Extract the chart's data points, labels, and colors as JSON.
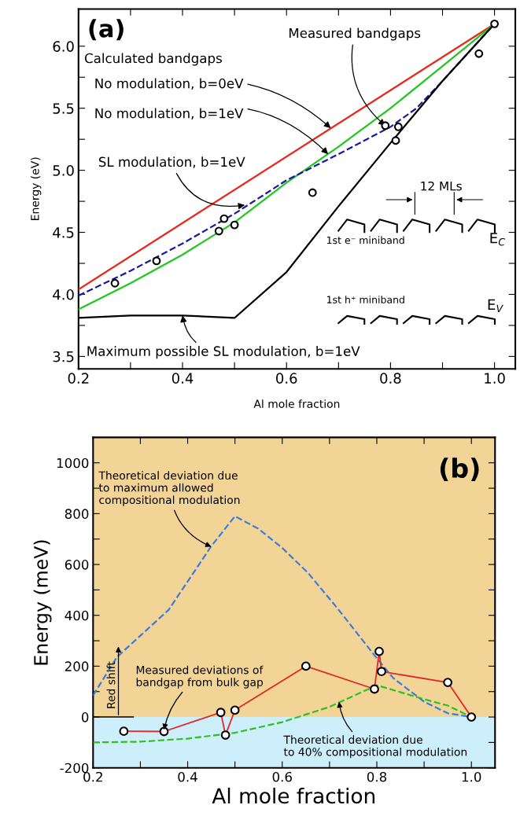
{
  "chart_data": [
    {
      "type": "line",
      "xlabel": "Al mole fraction",
      "ylabel": "Energy (eV)",
      "xlim": [
        0.2,
        1.04
      ],
      "ylim": [
        3.4,
        6.3
      ],
      "xticks": [
        0.2,
        {
          "value": 0.3,
          "label": null
        },
        0.4,
        {
          "value": 0.5,
          "label": null
        },
        0.6,
        {
          "value": 0.7,
          "label": null
        },
        0.8,
        {
          "value": 0.9,
          "label": null
        },
        {
          "value": 1.0,
          "label": "1.0"
        }
      ],
      "yticks": [
        {
          "value": 3.5,
          "label": "3.5"
        },
        {
          "value": 3.75,
          "label": null
        },
        {
          "value": 4.0,
          "label": "4.0"
        },
        {
          "value": 4.25,
          "label": null
        },
        4.5,
        {
          "value": 4.75,
          "label": null
        },
        {
          "value": 5.0,
          "label": "5.0"
        },
        {
          "value": 5.25,
          "label": null
        },
        5.5,
        {
          "value": 5.75,
          "label": null
        },
        {
          "value": 6.0,
          "label": "6.0"
        }
      ],
      "grid": false,
      "legend": false,
      "series": [
        {
          "color": "#e8281e",
          "line_style": "solid",
          "marker": "none",
          "x": [
            0.2,
            1.0
          ],
          "values": [
            4.04,
            6.18
          ]
        },
        {
          "color": "#1ec81e",
          "line_style": "solid",
          "marker": "none",
          "x": [
            0.2,
            0.3,
            0.4,
            0.5,
            0.6,
            0.7,
            0.8,
            0.9,
            1.0
          ],
          "values": [
            3.88,
            4.09,
            4.32,
            4.58,
            4.9,
            5.19,
            5.5,
            5.84,
            6.18
          ]
        },
        {
          "color": "#1a1aa0",
          "line_style": "dashed",
          "marker": "none",
          "x": [
            0.2,
            0.3,
            0.4,
            0.5,
            0.6,
            0.7,
            0.8,
            0.85,
            0.9,
            0.95,
            1.0
          ],
          "values": [
            3.99,
            4.19,
            4.41,
            4.65,
            4.92,
            5.13,
            5.35,
            5.5,
            5.72,
            5.95,
            6.18
          ]
        },
        {
          "color": "#000000",
          "line_style": "solid",
          "marker": "none",
          "x": [
            0.2,
            0.3,
            0.4,
            0.5,
            0.6,
            0.7,
            0.8,
            0.9,
            1.0
          ],
          "values": [
            3.81,
            3.83,
            3.83,
            3.81,
            4.18,
            4.71,
            5.22,
            5.72,
            6.18
          ]
        },
        {
          "type": "scatter",
          "color": "#000000",
          "marker": "circle",
          "x": [
            0.27,
            0.35,
            0.47,
            0.48,
            0.5,
            0.65,
            0.79,
            0.81,
            0.815,
            0.97,
            1.0
          ],
          "values": [
            4.09,
            4.27,
            4.51,
            4.61,
            4.56,
            4.82,
            5.36,
            5.24,
            5.35,
            5.94,
            6.18
          ]
        }
      ],
      "annotations": [
        "(a)",
        "Calculated bandgaps",
        {
          "text": "No modulation, b=0eV",
          "x": 0.685,
          "y": 5.34
        },
        {
          "text": "No modulation, b=1eV",
          "x": 0.68,
          "y": 5.13
        },
        {
          "text": "SL modulation, b=1eV",
          "x": 0.52,
          "y": 4.72
        },
        {
          "text": "Measured bandgaps",
          "x": 0.79,
          "y": 5.36
        },
        {
          "text": "Maximum possible SL modulation, b=1eV",
          "x": 0.4,
          "y": 3.83
        },
        "12 MLs",
        "1st e⁻ miniband",
        "E$_{C}$",
        "1st h⁺ miniband",
        "E$_{V}$"
      ]
    },
    {
      "type": "line",
      "xlabel": "Al mole fraction",
      "ylabel": "Energy (meV)",
      "xlim": [
        0.2,
        1.05
      ],
      "ylim": [
        -200,
        1100
      ],
      "xticks": [
        0.2,
        {
          "value": 0.3,
          "label": null
        },
        0.4,
        {
          "value": 0.5,
          "label": null
        },
        0.6,
        {
          "value": 0.7,
          "label": null
        },
        0.8,
        {
          "value": 0.9,
          "label": null
        },
        {
          "value": 1.0,
          "label": "1.0"
        }
      ],
      "yticks": [
        -200,
        {
          "value": -100,
          "label": null
        },
        0,
        {
          "value": 100,
          "label": null
        },
        200,
        {
          "value": 300,
          "label": null
        },
        400,
        {
          "value": 500,
          "label": null
        },
        600,
        {
          "value": 700,
          "label": null
        },
        800,
        {
          "value": 900,
          "label": null
        },
        1000
      ],
      "grid": false,
      "legend": false,
      "bands": [
        {
          "axis": "y",
          "from": 0,
          "to": 1100,
          "color": "#f3d497"
        },
        {
          "axis": "y",
          "from": -200,
          "to": 0,
          "color": "#cdeffb"
        }
      ],
      "series": [
        {
          "color": "#3a7de0",
          "line_style": "dashed",
          "marker": "none",
          "x": [
            0.2,
            0.25,
            0.3,
            0.36,
            0.45,
            0.5,
            0.55,
            0.6,
            0.655,
            0.72,
            0.8,
            0.835,
            0.9,
            0.95,
            1.0
          ],
          "values": [
            85,
            235,
            320,
            422,
            672,
            790,
            740,
            665,
            566,
            420,
            231,
            153,
            60,
            15,
            0
          ]
        },
        {
          "color": "#30c020",
          "line_style": "dashed",
          "marker": "none",
          "x": [
            0.2,
            0.3,
            0.4,
            0.5,
            0.6,
            0.7,
            0.8,
            0.9,
            0.95,
            1.0
          ],
          "values": [
            -100,
            -97,
            -85,
            -62,
            -20,
            40,
            125,
            70,
            45,
            0
          ]
        },
        {
          "color": "#e02828",
          "line_style": "solid",
          "marker": "circle",
          "x": [
            0.265,
            0.35,
            0.47,
            0.48,
            0.5,
            0.65,
            0.795,
            0.805,
            0.81,
            0.95,
            1.0
          ],
          "values": [
            -56,
            -57,
            18,
            -71,
            27,
            200,
            110,
            258,
            179,
            136,
            0
          ]
        }
      ],
      "annotations": [
        "(b)",
        {
          "text": "Theoretical deviation due\nto maximum allowed\ncompositional modulation",
          "x": 0.45,
          "y": 670
        },
        {
          "text": "Measured deviations of\nbandgap from bulk gap",
          "x": 0.35,
          "y": -50
        },
        {
          "text": "Theoretical deviation due\nto 40% compositional modulation",
          "x": 0.72,
          "y": 60
        },
        "Red shift"
      ]
    }
  ]
}
